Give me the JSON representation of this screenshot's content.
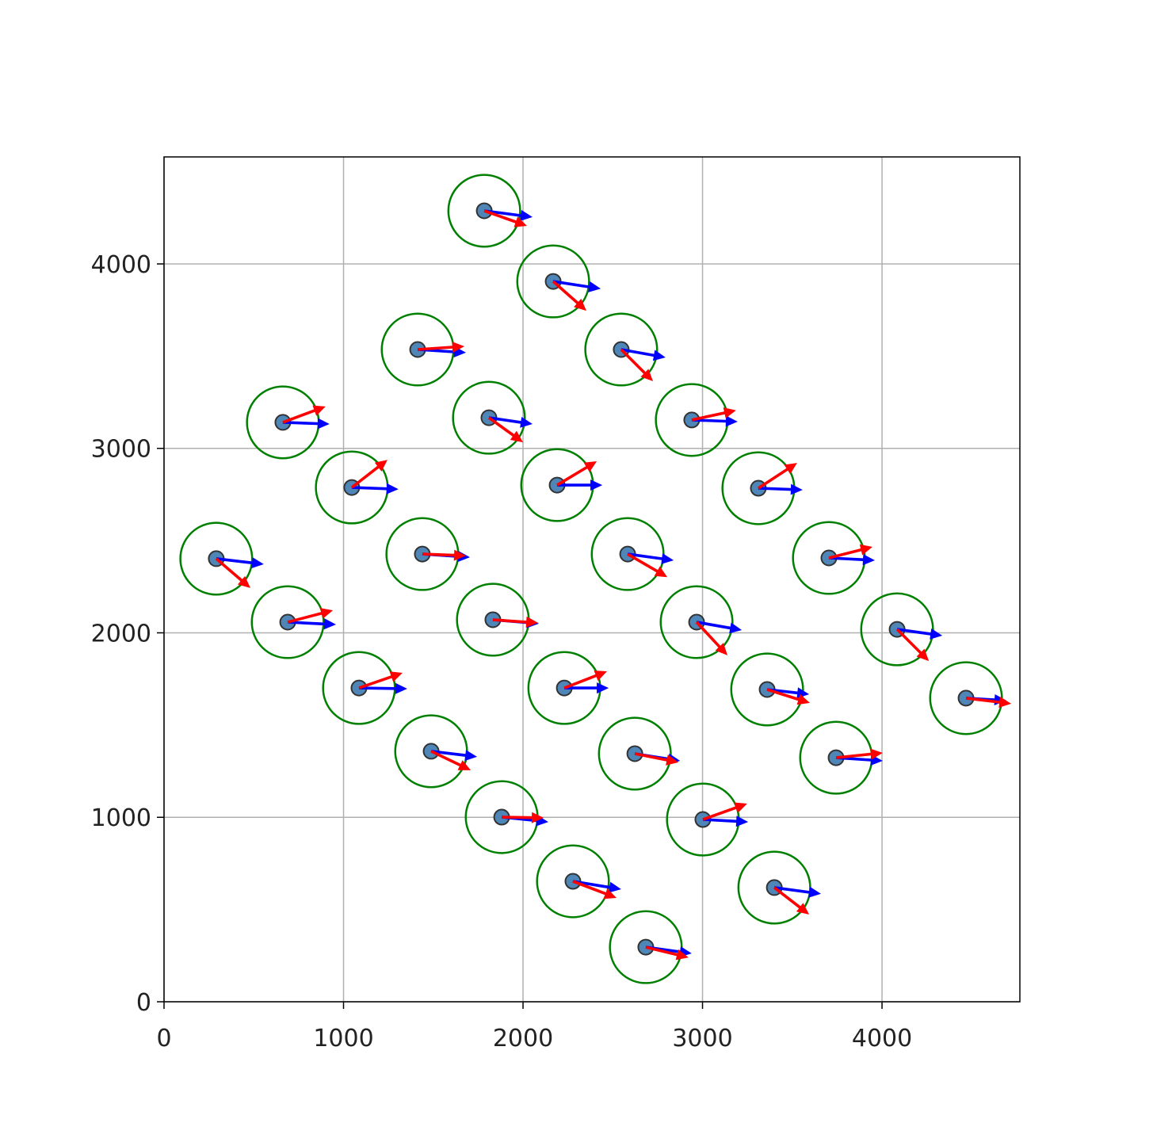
{
  "chart_data": {
    "type": "quiver",
    "x": [
      1784,
      2168,
      1413,
      2547,
      662,
      1810,
      2940,
      1046,
      2190,
      3311,
      291,
      1439,
      2583,
      3704,
      689,
      1832,
      2967,
      4084,
      1086,
      2230,
      3360,
      4468,
      1488,
      2623,
      3744,
      1881,
      3002,
      2278,
      3400,
      2684
    ],
    "y": [
      4288,
      3905,
      3536,
      3536,
      3141,
      3166,
      3154,
      2788,
      2801,
      2784,
      2402,
      2427,
      2427,
      2406,
      2058,
      2071,
      2058,
      2019,
      1701,
      1701,
      1693,
      1646,
      1358,
      1345,
      1323,
      1001,
      988,
      653,
      619,
      296
    ],
    "circle_radius": 200,
    "point_color": "#4f86b8",
    "circle_color": "green",
    "series": [
      {
        "color": "blue",
        "u": [
          269,
          265,
          269,
          247,
          260,
          243,
          256,
          260,
          252,
          247,
          265,
          265,
          256,
          256,
          269,
          256,
          252,
          252,
          269,
          247,
          234,
          225,
          256,
          252,
          260,
          260,
          252,
          269,
          260,
          256
        ],
        "v": [
          -34,
          -39,
          -17,
          -43,
          -9,
          -34,
          -9,
          -9,
          0,
          -9,
          -30,
          -17,
          -34,
          -13,
          -13,
          -21,
          -43,
          -34,
          -4,
          0,
          -26,
          -13,
          -30,
          -39,
          -17,
          -26,
          -13,
          -43,
          -34,
          -34
        ]
      },
      {
        "color": "red",
        "u": [
          238,
          185,
          260,
          177,
          238,
          190,
          247,
          199,
          221,
          216,
          190,
          243,
          221,
          243,
          252,
          252,
          172,
          177,
          243,
          238,
          238,
          252,
          221,
          243,
          260,
          234,
          247,
          243,
          194,
          238
        ],
        "v": [
          -82,
          -159,
          17,
          -172,
          86,
          -133,
          52,
          150,
          129,
          137,
          -159,
          -9,
          -125,
          60,
          64,
          -17,
          -180,
          -172,
          82,
          90,
          -73,
          -30,
          -103,
          -47,
          26,
          -4,
          86,
          -90,
          -146,
          -56
        ]
      }
    ],
    "xlim": [
      0,
      4768
    ],
    "ylim": [
      0,
      4580
    ],
    "xticks": [
      0,
      1000,
      2000,
      3000,
      4000
    ],
    "yticks": [
      0,
      1000,
      2000,
      3000,
      4000
    ],
    "grid": true
  }
}
